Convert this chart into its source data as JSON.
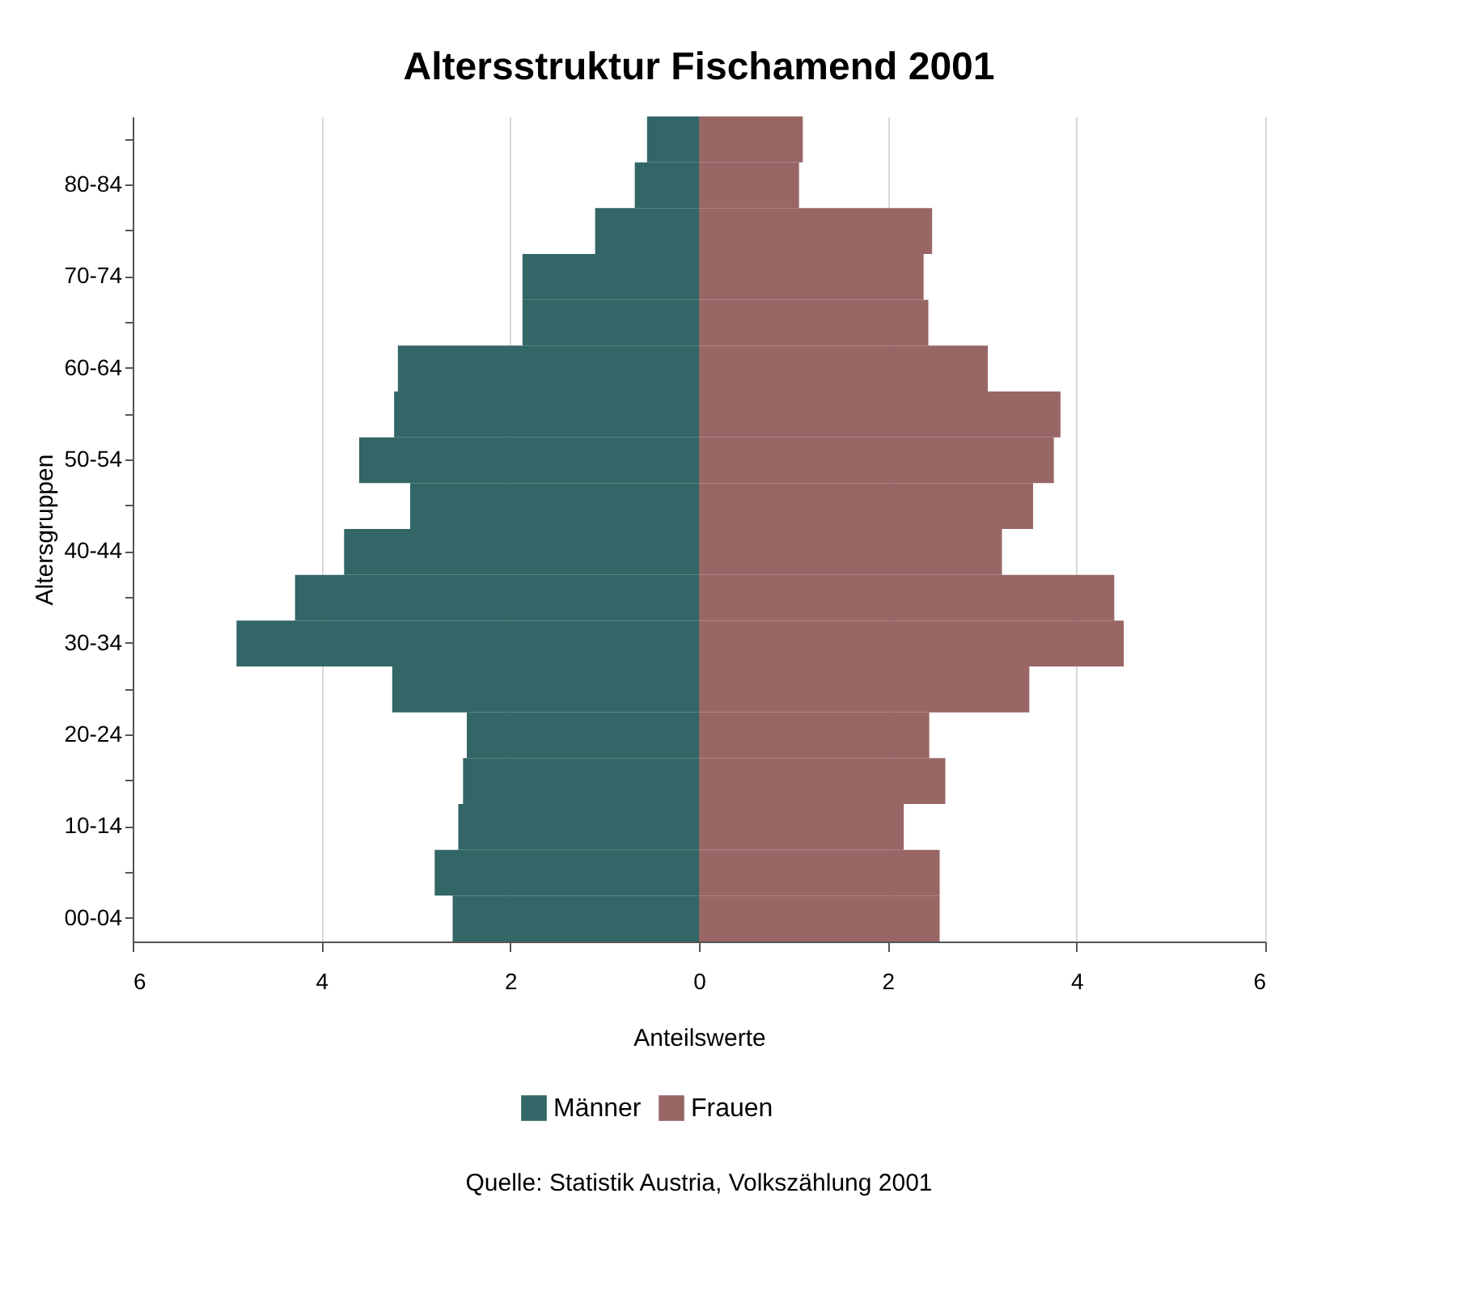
{
  "chart_data": {
    "type": "bar",
    "orientation": "horizontal",
    "title": "Altersstruktur Fischamend 2001",
    "xlabel": "Anteilswerte",
    "ylabel": "Altersgruppen",
    "categories": [
      null,
      "80-84",
      null,
      "70-74",
      null,
      "60-64",
      null,
      "50-54",
      null,
      "40-44",
      null,
      "30-34",
      null,
      "20-24",
      null,
      "10-14",
      null,
      "00-04"
    ],
    "series": [
      {
        "name": "Männer",
        "color": "#336666",
        "values": [
          -0.55,
          -0.68,
          -1.1,
          -1.87,
          -1.87,
          -3.19,
          -3.23,
          -3.6,
          -3.06,
          -3.76,
          -4.28,
          -4.9,
          -3.25,
          -2.46,
          -2.5,
          -2.55,
          -2.8,
          -2.61
        ]
      },
      {
        "name": "Frauen",
        "color": "#996666",
        "values": [
          1.1,
          1.06,
          2.47,
          2.38,
          2.43,
          3.06,
          3.83,
          3.76,
          3.54,
          3.21,
          4.4,
          4.5,
          3.5,
          2.44,
          2.61,
          2.17,
          2.55,
          2.55
        ]
      }
    ],
    "xlim": [
      -6,
      6
    ],
    "xticks": [
      {
        "value": -6,
        "label": "6"
      },
      {
        "value": -4,
        "label": "4"
      },
      {
        "value": -2,
        "label": "2"
      },
      0,
      2,
      4,
      6
    ],
    "grid": "x",
    "legend": "bottom",
    "stacked": true,
    "annotations": [
      "Quelle: Statistik Austria, Volkszählung 2001"
    ]
  }
}
